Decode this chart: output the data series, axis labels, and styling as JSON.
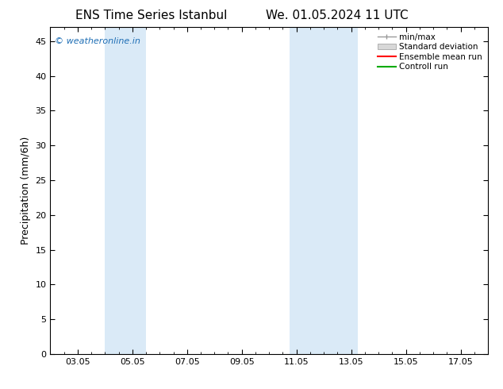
{
  "title_left": "ENS Time Series Istanbul",
  "title_right": "We. 01.05.2024 11 UTC",
  "ylabel": "Precipitation (mm/6h)",
  "xtick_labels": [
    "03.05",
    "05.05",
    "07.05",
    "09.05",
    "11.05",
    "13.05",
    "15.05",
    "17.05"
  ],
  "xtick_positions": [
    3,
    5,
    7,
    9,
    11,
    13,
    15,
    17
  ],
  "xlim": [
    2.0,
    18.0
  ],
  "ylim": [
    0,
    47
  ],
  "ytick_positions": [
    0,
    5,
    10,
    15,
    20,
    25,
    30,
    35,
    40,
    45
  ],
  "ytick_labels": [
    "0",
    "5",
    "10",
    "15",
    "20",
    "25",
    "30",
    "35",
    "40",
    "45"
  ],
  "shaded_bands": [
    {
      "x_start": 4.0,
      "x_end": 5.5
    },
    {
      "x_start": 10.75,
      "x_end": 13.25
    }
  ],
  "shade_color": "#daeaf7",
  "watermark_text": "© weatheronline.in",
  "watermark_color": "#1e6eb5",
  "legend_labels": [
    "min/max",
    "Standard deviation",
    "Ensemble mean run",
    "Controll run"
  ],
  "legend_line_colors": [
    "#999999",
    "#cccccc",
    "#ff0000",
    "#00aa00"
  ],
  "background_color": "#ffffff",
  "spine_color": "#000000",
  "tick_color": "#000000",
  "title_fontsize": 11,
  "ylabel_fontsize": 9,
  "tick_fontsize": 8,
  "watermark_fontsize": 8,
  "legend_fontsize": 7.5
}
